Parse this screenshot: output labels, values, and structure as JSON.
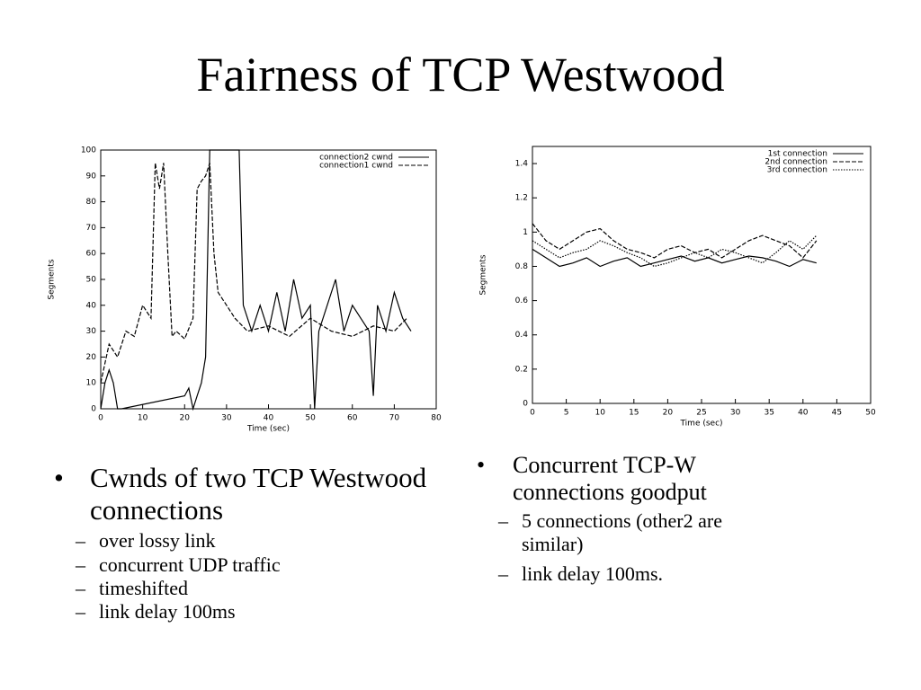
{
  "slide": {
    "title": "Fairness of TCP Westwood",
    "columns": [
      {
        "bullet": "Cwnds of two TCP Westwood connections",
        "sub_bullets": [
          "over lossy link",
          "concurrent UDP traffic",
          "timeshifted",
          "link delay 100ms"
        ]
      },
      {
        "bullet": "Concurrent TCP-W connections goodput",
        "sub_bullets": [
          "5 connections (other2 are similar)",
          "link delay 100ms."
        ]
      }
    ]
  },
  "chart_data": [
    {
      "type": "line",
      "x_label": "Time (sec)",
      "y_label": "Segments",
      "xlim": [
        0,
        80
      ],
      "xticks": [
        0,
        10,
        20,
        30,
        40,
        50,
        60,
        70,
        80
      ],
      "ylim": [
        0,
        100
      ],
      "yticks": [
        0,
        10,
        20,
        30,
        40,
        50,
        60,
        70,
        80,
        90,
        100
      ],
      "legend": "upper right",
      "grid": false,
      "series": [
        {
          "name": "connection2 cwnd",
          "color": "#000000",
          "dash": "solid",
          "x": [
            0,
            1,
            2,
            3,
            4,
            5,
            20,
            21,
            22,
            23,
            24,
            25,
            26,
            27,
            28,
            33,
            34,
            35,
            36,
            38,
            40,
            42,
            44,
            46,
            48,
            50,
            51,
            52,
            54,
            56,
            58,
            60,
            62,
            64,
            65,
            66,
            68,
            70,
            72,
            74
          ],
          "values": [
            0,
            10,
            15,
            10,
            0,
            0,
            5,
            8,
            0,
            5,
            10,
            20,
            100,
            100,
            100,
            100,
            40,
            35,
            30,
            40,
            30,
            45,
            30,
            50,
            35,
            40,
            0,
            30,
            40,
            50,
            30,
            40,
            35,
            30,
            5,
            40,
            30,
            45,
            35,
            30
          ]
        },
        {
          "name": "connection1 cwnd",
          "color": "#000000",
          "dash": "dashed",
          "x": [
            0,
            2,
            4,
            6,
            8,
            10,
            12,
            13,
            14,
            15,
            16,
            17,
            18,
            20,
            22,
            23,
            24,
            25,
            26,
            27,
            28,
            30,
            32,
            35,
            40,
            45,
            50,
            55,
            60,
            65,
            70,
            73
          ],
          "values": [
            10,
            25,
            20,
            30,
            28,
            40,
            35,
            95,
            85,
            95,
            60,
            28,
            30,
            27,
            35,
            85,
            88,
            90,
            95,
            60,
            45,
            40,
            35,
            30,
            32,
            28,
            35,
            30,
            28,
            32,
            30,
            35
          ]
        }
      ]
    },
    {
      "type": "line",
      "x_label": "Time (sec)",
      "y_label": "Segments",
      "xlim": [
        0,
        50
      ],
      "xticks": [
        0,
        5,
        10,
        15,
        20,
        25,
        30,
        35,
        40,
        45,
        50
      ],
      "ylim": [
        0,
        1.5
      ],
      "yticks": [
        0,
        0.2,
        0.4,
        0.6,
        0.8,
        1,
        1.2,
        1.4
      ],
      "legend": "upper right",
      "grid": false,
      "series": [
        {
          "name": "1st connection",
          "color": "#000000",
          "dash": "solid",
          "x": [
            0,
            2,
            4,
            6,
            8,
            10,
            12,
            14,
            16,
            18,
            20,
            22,
            24,
            26,
            28,
            30,
            32,
            34,
            36,
            38,
            40,
            42
          ],
          "values": [
            0.9,
            0.85,
            0.8,
            0.82,
            0.85,
            0.8,
            0.83,
            0.85,
            0.8,
            0.82,
            0.84,
            0.86,
            0.83,
            0.85,
            0.82,
            0.84,
            0.86,
            0.85,
            0.83,
            0.8,
            0.84,
            0.82
          ]
        },
        {
          "name": "2nd connection",
          "color": "#000000",
          "dash": "dashed",
          "x": [
            0,
            2,
            4,
            6,
            8,
            10,
            12,
            14,
            16,
            18,
            20,
            22,
            24,
            26,
            28,
            30,
            32,
            34,
            36,
            38,
            40,
            42
          ],
          "values": [
            1.05,
            0.95,
            0.9,
            0.95,
            1.0,
            1.02,
            0.95,
            0.9,
            0.88,
            0.85,
            0.9,
            0.92,
            0.88,
            0.9,
            0.85,
            0.9,
            0.95,
            0.98,
            0.95,
            0.92,
            0.85,
            0.95
          ]
        },
        {
          "name": "3rd connection",
          "color": "#000000",
          "dash": "dotted",
          "x": [
            0,
            2,
            4,
            6,
            8,
            10,
            12,
            14,
            16,
            18,
            20,
            22,
            24,
            26,
            28,
            30,
            32,
            34,
            36,
            38,
            40,
            42
          ],
          "values": [
            0.95,
            0.9,
            0.85,
            0.88,
            0.9,
            0.95,
            0.92,
            0.88,
            0.85,
            0.8,
            0.82,
            0.85,
            0.88,
            0.85,
            0.9,
            0.88,
            0.85,
            0.82,
            0.88,
            0.95,
            0.9,
            0.98
          ]
        }
      ]
    }
  ]
}
